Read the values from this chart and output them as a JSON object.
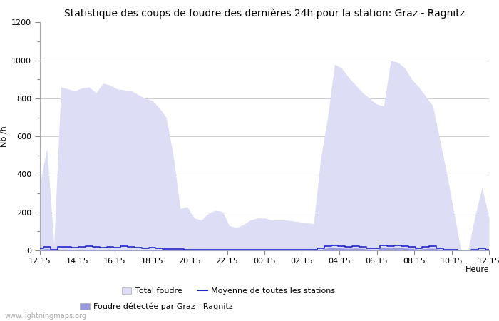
{
  "title": "Statistique des coups de foudre des dernières 24h pour la station: Graz - Ragnitz",
  "xlabel": "Heure",
  "ylabel": "Nb /h",
  "watermark": "www.lightningmaps.org",
  "ylim": [
    0,
    1200
  ],
  "yticks": [
    0,
    200,
    400,
    600,
    800,
    1000,
    1200
  ],
  "xtick_labels": [
    "12:15",
    "14:15",
    "16:15",
    "18:15",
    "20:15",
    "22:15",
    "00:15",
    "02:15",
    "04:15",
    "06:15",
    "08:15",
    "10:15",
    "12:15"
  ],
  "legend": {
    "total_foudre_label": "Total foudre",
    "total_foudre_color": "#ddddf5",
    "moyenne_label": "Moyenne de toutes les stations",
    "moyenne_color": "#2222cc",
    "foudre_detectee_label": "Foudre détectée par Graz - Ragnitz",
    "foudre_detectee_color": "#9999dd"
  },
  "total_foudre": [
    350,
    540,
    30,
    860,
    850,
    840,
    855,
    860,
    830,
    880,
    870,
    850,
    845,
    840,
    820,
    800,
    790,
    750,
    700,
    500,
    220,
    230,
    170,
    160,
    195,
    210,
    205,
    130,
    120,
    135,
    160,
    170,
    170,
    160,
    160,
    160,
    155,
    150,
    145,
    140,
    480,
    700,
    980,
    960,
    910,
    870,
    830,
    800,
    770,
    760,
    1000,
    990,
    960,
    900,
    860,
    810,
    760,
    580,
    400,
    200,
    0,
    0,
    180,
    330,
    170
  ],
  "moyenne": [
    10,
    18,
    5,
    20,
    18,
    15,
    18,
    22,
    18,
    15,
    18,
    15,
    22,
    18,
    15,
    12,
    15,
    10,
    8,
    8,
    6,
    5,
    5,
    5,
    5,
    5,
    5,
    5,
    5,
    5,
    5,
    5,
    5,
    5,
    5,
    5,
    5,
    5,
    5,
    5,
    10,
    22,
    28,
    22,
    18,
    22,
    18,
    12,
    12,
    28,
    22,
    28,
    22,
    18,
    12,
    18,
    22,
    12,
    5,
    5,
    0,
    0,
    5,
    12,
    5
  ],
  "foudre_detectee": [
    5,
    10,
    2,
    6,
    5,
    5,
    5,
    5,
    5,
    5,
    5,
    5,
    5,
    5,
    5,
    5,
    5,
    4,
    3,
    3,
    3,
    3,
    3,
    3,
    3,
    3,
    3,
    3,
    3,
    3,
    3,
    3,
    3,
    3,
    3,
    3,
    3,
    3,
    3,
    3,
    5,
    12,
    16,
    12,
    10,
    12,
    10,
    6,
    6,
    16,
    12,
    16,
    12,
    10,
    6,
    10,
    12,
    6,
    3,
    3,
    0,
    0,
    3,
    6,
    3
  ],
  "background_color": "#ffffff",
  "plot_bg_color": "#ffffff",
  "grid_color": "#cccccc",
  "title_fontsize": 10,
  "axis_fontsize": 8,
  "tick_fontsize": 8
}
